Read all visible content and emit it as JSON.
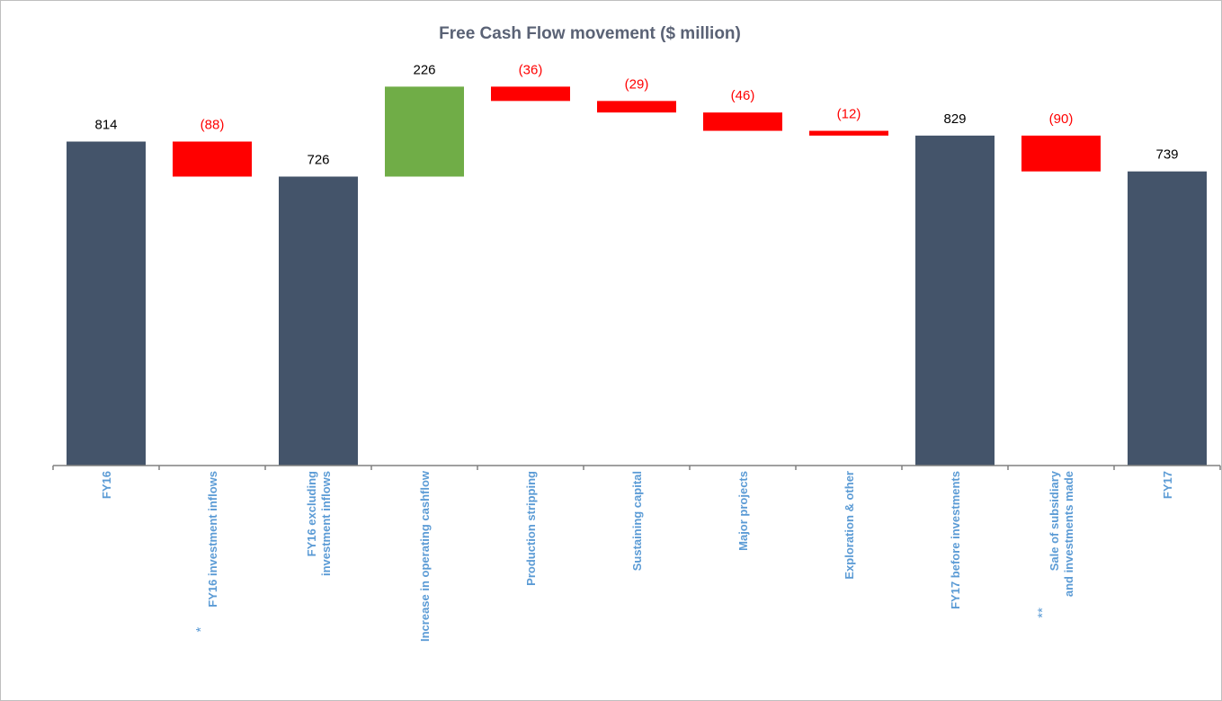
{
  "chart_data": {
    "type": "waterfall",
    "title": "Free Cash Flow movement ($ million)",
    "ylim": [
      0,
      1050
    ],
    "colors": {
      "total": "#44546a",
      "increase": "#70ad47",
      "decrease": "#ff0000",
      "axis": "#808080",
      "category_label": "#5b9bd5",
      "title": "#5a6275"
    },
    "steps": [
      {
        "category": [
          "FY16"
        ],
        "marker": "",
        "kind": "total",
        "value": 814,
        "label": "814"
      },
      {
        "category": [
          "FY16 investment inflows"
        ],
        "marker": "*",
        "kind": "decrease",
        "value": -88,
        "label": "(88)"
      },
      {
        "category": [
          "FY16 excluding",
          "investment inflows"
        ],
        "marker": "",
        "kind": "total",
        "value": 726,
        "label": "726"
      },
      {
        "category": [
          "Increase in operating cashflow"
        ],
        "marker": "",
        "kind": "increase",
        "value": 226,
        "label": "226"
      },
      {
        "category": [
          "Production stripping"
        ],
        "marker": "",
        "kind": "decrease",
        "value": -36,
        "label": "(36)"
      },
      {
        "category": [
          "Sustaining capital"
        ],
        "marker": "",
        "kind": "decrease",
        "value": -29,
        "label": "(29)"
      },
      {
        "category": [
          "Major projects"
        ],
        "marker": "",
        "kind": "decrease",
        "value": -46,
        "label": "(46)"
      },
      {
        "category": [
          "Exploration & other"
        ],
        "marker": "",
        "kind": "decrease",
        "value": -12,
        "label": "(12)"
      },
      {
        "category": [
          "FY17 before investments"
        ],
        "marker": "",
        "kind": "total",
        "value": 829,
        "label": "829"
      },
      {
        "category": [
          "Sale of subsidiary",
          "and investments made"
        ],
        "marker": "**",
        "kind": "decrease",
        "value": -90,
        "label": "(90)"
      },
      {
        "category": [
          "FY17"
        ],
        "marker": "",
        "kind": "total",
        "value": 739,
        "label": "739"
      }
    ]
  }
}
